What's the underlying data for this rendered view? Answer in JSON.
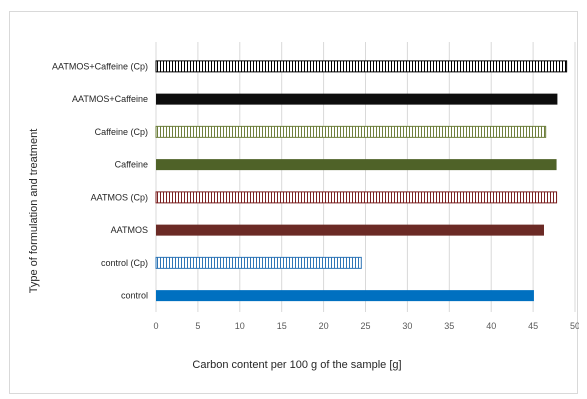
{
  "chart_data": {
    "type": "bar",
    "orientation": "horizontal",
    "title": "",
    "xlabel": "Carbon content per 100 g of the sample [g]",
    "ylabel": "Type of formulation and treatment",
    "xlim": [
      0,
      50
    ],
    "xticks": [
      0,
      5,
      10,
      15,
      20,
      25,
      30,
      35,
      40,
      45,
      50
    ],
    "grid": true,
    "legend": "none",
    "categories": [
      "AATMOS+Caffeine (Cp)",
      "AATMOS+Caffeine",
      "Caffeine (Cp)",
      "Caffeine",
      "AATMOS (Cp)",
      "AATMOS",
      "control (Cp)",
      "control"
    ],
    "values": [
      49.0,
      47.9,
      46.5,
      47.8,
      47.8,
      46.3,
      24.5,
      45.1
    ],
    "bar_styles": [
      {
        "fill": "pattern",
        "color": "#000000"
      },
      {
        "fill": "solid",
        "color": "#0d0d0d"
      },
      {
        "fill": "pattern",
        "color": "#6e7f3c"
      },
      {
        "fill": "solid",
        "color": "#4f6228"
      },
      {
        "fill": "pattern",
        "color": "#7b2020"
      },
      {
        "fill": "solid",
        "color": "#6b2a25"
      },
      {
        "fill": "pattern",
        "color": "#2e75b6"
      },
      {
        "fill": "solid",
        "color": "#0070c0"
      }
    ]
  }
}
